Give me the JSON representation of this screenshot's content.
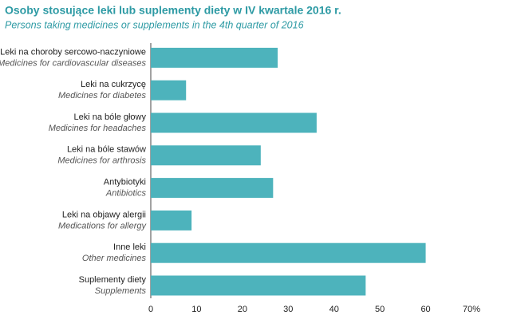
{
  "chart_data": {
    "type": "bar",
    "orientation": "horizontal",
    "title": "Osoby stosujące leki lub suplementy diety w IV kwartale 2016 r.",
    "subtitle": "Persons taking medicines or supplements in the 4th quarter of 2016",
    "categories": [
      "Leki na choroby sercowo-naczyniowe",
      "Leki na cukrzycę",
      "Leki na bóle głowy",
      "Leki na bóle stawów",
      "Antybiotyki",
      "Leki na objawy alergii",
      "Inne leki",
      "Suplementy diety"
    ],
    "categories_en": [
      "Medicines for cardiovascular diseases",
      "Medicines for diabetes",
      "Medicines for headaches",
      "Medicines for arthrosis",
      "Antibiotics",
      "Medications for allergy",
      "Other medicines",
      "Supplements"
    ],
    "values": [
      27.7,
      7.7,
      36.2,
      24,
      26.7,
      8.9,
      60,
      46.9
    ],
    "color": "#4db3bc",
    "xlim": [
      0,
      70
    ],
    "xticks": [
      0,
      10,
      20,
      30,
      40,
      50,
      60,
      {
        "value": 70,
        "label": "70%"
      }
    ]
  }
}
